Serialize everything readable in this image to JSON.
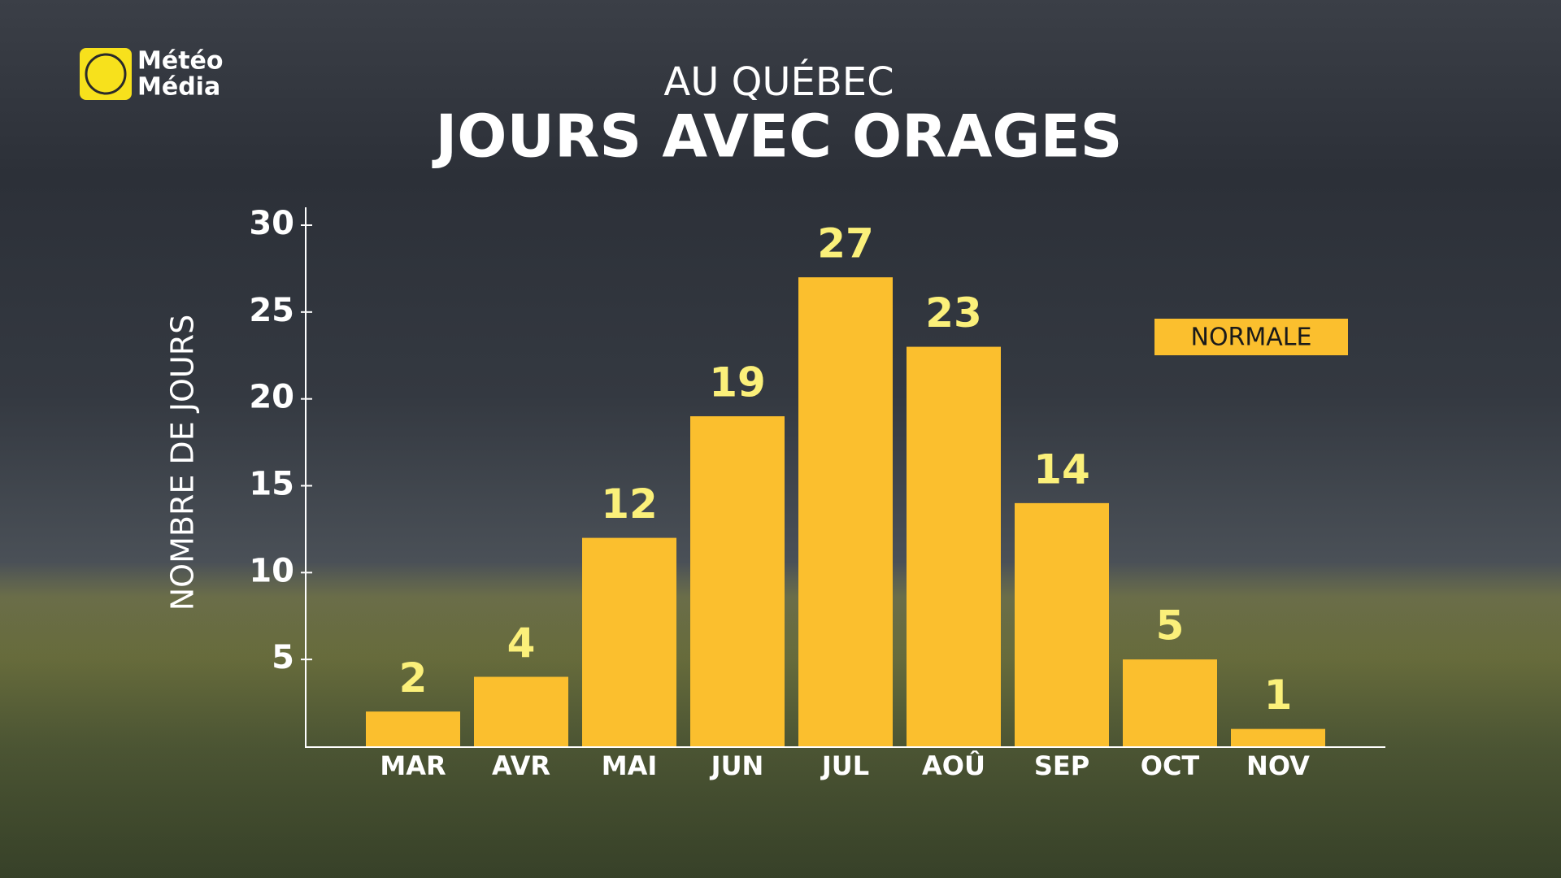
{
  "brand": {
    "line1": "Météo",
    "line2": "Média"
  },
  "chart_data": {
    "type": "bar",
    "subtitle": "AU QUÉBEC",
    "title": "JOURS AVEC ORAGES",
    "y_label": "NOMBRE DE JOURS",
    "categories": [
      "MAR",
      "AVR",
      "MAI",
      "JUN",
      "JUL",
      "AOÛ",
      "SEP",
      "OCT",
      "NOV"
    ],
    "series": [
      {
        "name": "NORMALE",
        "color": "#fbbf2e",
        "values": [
          2,
          4,
          12,
          19,
          27,
          23,
          14,
          5,
          1
        ]
      }
    ],
    "ylim": [
      0,
      30
    ],
    "yticks": [
      5,
      10,
      15,
      20,
      25,
      30
    ],
    "grid": false,
    "legend": "upper right"
  }
}
